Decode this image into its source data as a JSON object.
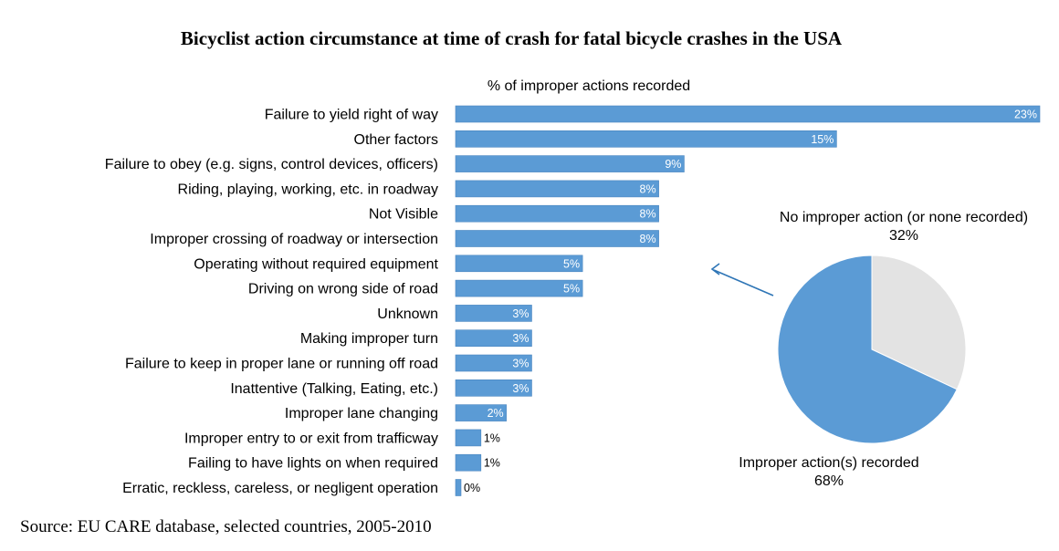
{
  "title": "Bicyclist action circumstance at time of crash for fatal bicycle crashes in the USA",
  "source": "Source: EU CARE database, selected countries, 2005-2010",
  "colors": {
    "bar": "#5b9bd5",
    "bar_border": "#4a86c0",
    "pie_improper": "#5b9bd5",
    "pie_none": "#e3e3e3",
    "arrow": "#2e75b6"
  },
  "chart_data": [
    {
      "type": "bar",
      "orientation": "horizontal",
      "axis_label": "% of improper actions recorded",
      "categories": [
        "Failure to yield right of way",
        "Other factors",
        "Failure to obey (e.g. signs, control devices, officers)",
        "Riding, playing, working, etc. in roadway",
        "Not Visible",
        "Improper crossing of roadway or intersection",
        "Operating without required equipment",
        "Driving on wrong side of road",
        "Unknown",
        "Making improper turn",
        "Failure to keep in proper lane or running off road",
        "Inattentive (Talking,  Eating, etc.)",
        "Improper lane changing",
        "Improper entry to or exit from trafficway",
        "Failing to have lights on when required",
        "Erratic, reckless, careless, or negligent operation"
      ],
      "values": [
        23,
        15,
        9,
        8,
        8,
        8,
        5,
        5,
        3,
        3,
        3,
        3,
        2,
        1,
        1,
        0
      ],
      "value_labels": [
        "23%",
        "15%",
        "9%",
        "8%",
        "8%",
        "8%",
        "5%",
        "5%",
        "3%",
        "3%",
        "3%",
        "3%",
        "2%",
        "1%",
        "1%",
        "0%"
      ],
      "xlim": [
        0,
        23
      ]
    },
    {
      "type": "pie",
      "labels": [
        "Improper action(s) recorded",
        "No improper action (or none recorded)"
      ],
      "values": [
        68,
        32
      ],
      "value_labels": [
        "68%",
        "32%"
      ]
    }
  ]
}
